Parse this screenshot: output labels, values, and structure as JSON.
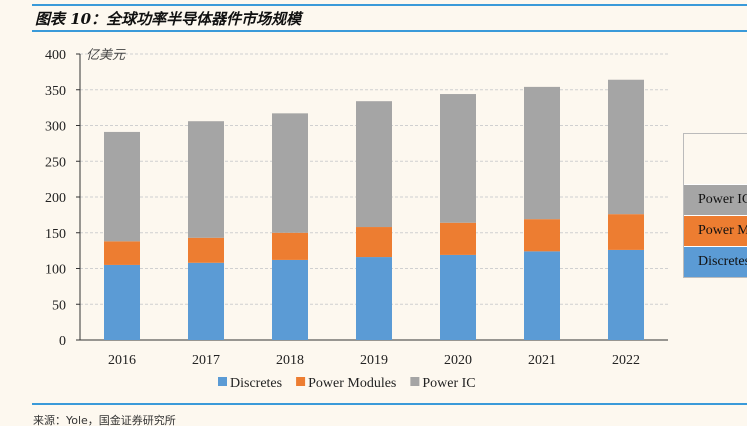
{
  "title": "图表 10：全球功率半导体器件市场规模",
  "source": "来源：Yole，国金证券研究所",
  "chart_data": {
    "type": "bar",
    "stacked": true,
    "title": "全球功率半导体器件市场规模",
    "ylabel": "亿美元",
    "xlabel": "",
    "ylim": [
      0,
      400
    ],
    "yticks": [
      0,
      50,
      100,
      150,
      200,
      250,
      300,
      350,
      400
    ],
    "grid": true,
    "legend_placement": "bottom",
    "categories": [
      "2016",
      "2017",
      "2018",
      "2019",
      "2020",
      "2021",
      "2022"
    ],
    "series": [
      {
        "name": "Discretes",
        "color": "#5b9bd5",
        "values": [
          105,
          108,
          112,
          116,
          119,
          124,
          126
        ]
      },
      {
        "name": "Power Modules",
        "color": "#ed7d31",
        "values": [
          33,
          35,
          38,
          42,
          45,
          45,
          50
        ]
      },
      {
        "name": "Power IC",
        "color": "#a5a5a5",
        "values": [
          153,
          163,
          167,
          176,
          180,
          185,
          188
        ]
      }
    ]
  },
  "side_table": [
    "Power IC",
    "Power Modules",
    "Discretes"
  ]
}
